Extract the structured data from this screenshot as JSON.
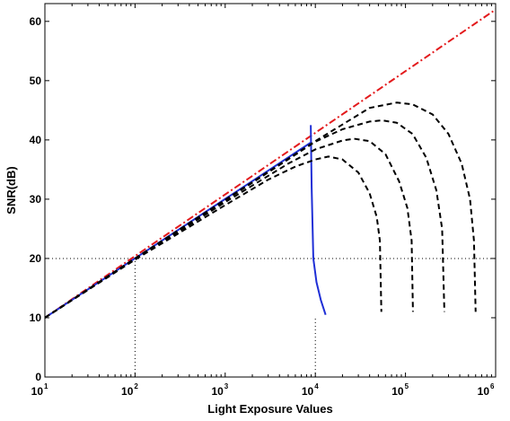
{
  "chart_data": {
    "type": "line",
    "title": "",
    "xlabel": "Light Exposure Values",
    "ylabel": "SNR(dB)",
    "xscale": "log",
    "xlim": [
      10,
      1000000
    ],
    "ylim": [
      0,
      63
    ],
    "grid": false,
    "legend": "none",
    "x_ticks": [
      {
        "base": "10",
        "exp": "1"
      },
      {
        "base": "10",
        "exp": "2"
      },
      {
        "base": "10",
        "exp": "3"
      },
      {
        "base": "10",
        "exp": "4"
      },
      {
        "base": "10",
        "exp": "5"
      },
      {
        "base": "10",
        "exp": "6"
      }
    ],
    "y_ticks": [
      "0",
      "10",
      "20",
      "30",
      "40",
      "50",
      "60"
    ],
    "reference_lines": [
      {
        "style": "dotted",
        "color": "#000000",
        "points": [
          [
            10,
            20
          ],
          [
            1000000,
            20
          ]
        ]
      },
      {
        "style": "dotted",
        "color": "#000000",
        "points": [
          [
            100,
            0
          ],
          [
            100,
            20
          ]
        ]
      },
      {
        "style": "dotted",
        "color": "#000000",
        "points": [
          [
            10000,
            0
          ],
          [
            10000,
            10
          ]
        ]
      }
    ],
    "series": [
      {
        "style": "dash-dot",
        "color": "#e31a1c",
        "points": [
          [
            10,
            10
          ],
          [
            1000000,
            62
          ]
        ]
      },
      {
        "style": "solid",
        "color": "#1f2fd6",
        "points": [
          [
            10,
            10
          ],
          [
            9000,
            39.6
          ]
        ]
      },
      {
        "style": "solid",
        "color": "#1f2fd6",
        "points": [
          [
            8900,
            42.5
          ],
          [
            9100,
            32
          ],
          [
            9500,
            20
          ],
          [
            10300,
            16
          ],
          [
            11500,
            13
          ],
          [
            13000,
            10.5
          ]
        ]
      },
      {
        "style": "dashed",
        "color": "#000000",
        "points": [
          [
            10,
            10
          ],
          [
            100,
            19.8
          ],
          [
            1000,
            29
          ],
          [
            3000,
            33.3
          ],
          [
            6000,
            35.5
          ],
          [
            10000,
            36.7
          ],
          [
            14000,
            37.2
          ],
          [
            20000,
            36.7
          ],
          [
            30000,
            34.5
          ],
          [
            40000,
            31
          ],
          [
            48000,
            27
          ],
          [
            52000,
            23
          ],
          [
            54000,
            11
          ]
        ]
      },
      {
        "style": "dashed",
        "color": "#000000",
        "points": [
          [
            10,
            10
          ],
          [
            100,
            19.9
          ],
          [
            1000,
            29.5
          ],
          [
            5000,
            36
          ],
          [
            10000,
            38.4
          ],
          [
            20000,
            39.9
          ],
          [
            27000,
            40.2
          ],
          [
            40000,
            39.8
          ],
          [
            60000,
            37.6
          ],
          [
            85000,
            33
          ],
          [
            105000,
            28.5
          ],
          [
            117000,
            23
          ],
          [
            121000,
            11
          ]
        ]
      },
      {
        "style": "dashed",
        "color": "#000000",
        "points": [
          [
            10,
            10
          ],
          [
            100,
            20
          ],
          [
            1000,
            29.8
          ],
          [
            10000,
            39.7
          ],
          [
            20000,
            41.8
          ],
          [
            40000,
            43.1
          ],
          [
            55000,
            43.3
          ],
          [
            80000,
            42.9
          ],
          [
            120000,
            41
          ],
          [
            170000,
            37
          ],
          [
            220000,
            31.5
          ],
          [
            255000,
            25
          ],
          [
            270000,
            11
          ]
        ]
      },
      {
        "style": "dashed",
        "color": "#000000",
        "points": [
          [
            10,
            10
          ],
          [
            100,
            20
          ],
          [
            1000,
            29.9
          ],
          [
            10000,
            39.8
          ],
          [
            40000,
            45.4
          ],
          [
            80000,
            46.3
          ],
          [
            120000,
            46
          ],
          [
            200000,
            44.3
          ],
          [
            300000,
            41
          ],
          [
            420000,
            36
          ],
          [
            520000,
            30
          ],
          [
            575000,
            23
          ],
          [
            600000,
            11
          ]
        ]
      }
    ]
  }
}
